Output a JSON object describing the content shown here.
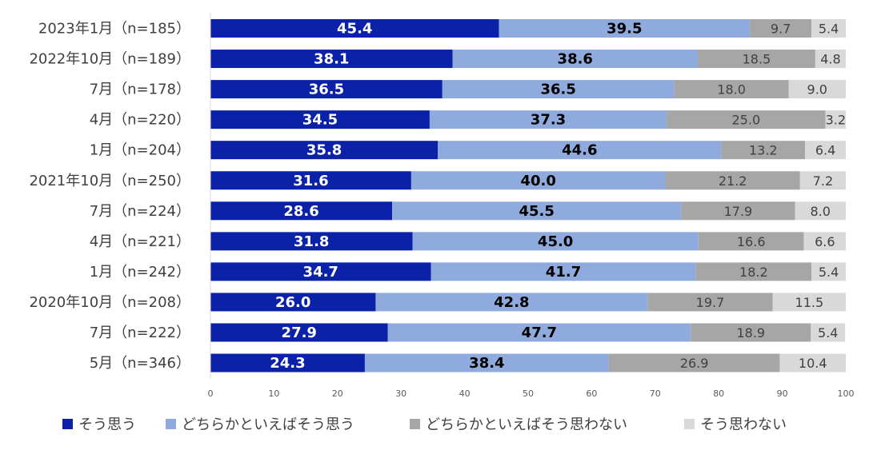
{
  "chart_data": {
    "type": "bar",
    "orientation": "horizontal",
    "stacked": true,
    "categories": [
      "2023年1月（n=185）",
      "2022年10月（n=189）",
      "7月（n=178）",
      "4月（n=220）",
      "1月（n=204）",
      "2021年10月（n=250）",
      "7月（n=224）",
      "4月（n=221）",
      "1月（n=242）",
      "2020年10月（n=208）",
      "7月（n=222）",
      "5月（n=346）"
    ],
    "series": [
      {
        "name": "そう思う",
        "color": "#0B22A8",
        "label_color": "#FFFFFF",
        "values": [
          45.4,
          38.1,
          36.5,
          34.5,
          35.8,
          31.6,
          28.6,
          31.8,
          34.7,
          26.0,
          27.9,
          24.3
        ],
        "labels": [
          "45.4",
          "38.1",
          "36.5",
          "34.5",
          "35.8",
          "31.6",
          "28.6",
          "31.8",
          "34.7",
          "26.0",
          "27.9",
          "24.3"
        ]
      },
      {
        "name": "どちらかといえばそう思う",
        "color": "#8FAADC",
        "label_color": "#000000",
        "values": [
          39.5,
          38.6,
          36.5,
          37.3,
          44.6,
          40.0,
          45.5,
          45.0,
          41.7,
          42.8,
          47.7,
          38.4
        ],
        "labels": [
          "39.5",
          "38.6",
          "36.5",
          "37.3",
          "44.6",
          "40.0",
          "45.5",
          "45.0",
          "41.7",
          "42.8",
          "47.7",
          "38.4"
        ]
      },
      {
        "name": "どちらかといえばそう思わない",
        "color": "#A6A6A6",
        "label_color": "#404040",
        "values": [
          9.7,
          18.5,
          18.0,
          25.0,
          13.2,
          21.2,
          17.9,
          16.6,
          18.2,
          19.7,
          18.9,
          26.9
        ],
        "labels": [
          "9.7",
          "18.5",
          "18.0",
          "25.0",
          "13.2",
          "21.2",
          "17.9",
          "16.6",
          "18.2",
          "19.7",
          "18.9",
          "26.9"
        ]
      },
      {
        "name": "そう思わない",
        "color": "#D9D9D9",
        "label_color": "#404040",
        "values": [
          5.4,
          4.8,
          9.0,
          3.2,
          6.4,
          7.2,
          8.0,
          6.6,
          5.4,
          11.5,
          5.4,
          10.4
        ],
        "labels": [
          "5.4",
          "4.8",
          "9.0",
          "3.2",
          "6.4",
          "7.2",
          "8.0",
          "6.6",
          "5.4",
          "11.5",
          "5.4",
          "10.4"
        ]
      }
    ],
    "xlim": [
      0,
      100
    ],
    "xticks": [
      0,
      10,
      20,
      30,
      40,
      50,
      60,
      70,
      80,
      90,
      100
    ],
    "xtick_labels": [
      "0",
      "10",
      "20",
      "30",
      "40",
      "50",
      "60",
      "70",
      "80",
      "90",
      "100"
    ],
    "legend_position": "bottom",
    "grid": false,
    "title": "",
    "xlabel": "",
    "ylabel": ""
  }
}
